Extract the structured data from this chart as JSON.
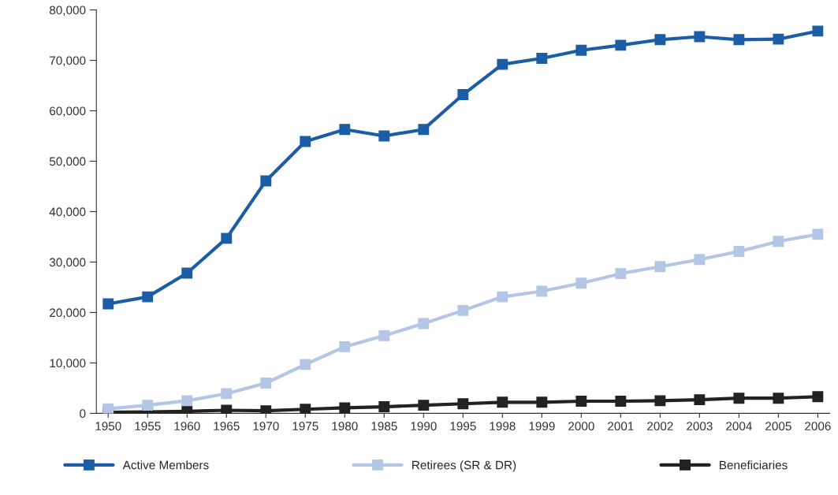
{
  "chart_data": {
    "type": "line",
    "categories": [
      "1950",
      "1955",
      "1960",
      "1965",
      "1970",
      "1975",
      "1980",
      "1985",
      "1990",
      "1995",
      "1998",
      "1999",
      "2000",
      "2001",
      "2002",
      "2003",
      "2004",
      "2005",
      "2006"
    ],
    "series": [
      {
        "name": "Active Members",
        "color": "#1b5ea6",
        "values": [
          21700,
          23100,
          27800,
          34700,
          46100,
          53900,
          56300,
          55000,
          56300,
          63200,
          69200,
          70400,
          72000,
          73000,
          74100,
          74700,
          74100,
          74200,
          75800
        ]
      },
      {
        "name": "Retirees (SR & DR)",
        "color": "#b3c6e6",
        "values": [
          900,
          1600,
          2500,
          3900,
          6000,
          9700,
          13200,
          15400,
          17800,
          20400,
          23100,
          24200,
          25800,
          27700,
          29100,
          30500,
          32100,
          34100,
          35500
        ]
      },
      {
        "name": "Beneficiaries",
        "color": "#222222",
        "values": [
          200,
          300,
          400,
          600,
          500,
          800,
          1100,
          1300,
          1600,
          1900,
          2200,
          2200,
          2400,
          2400,
          2500,
          2700,
          3000,
          3000,
          3300
        ]
      }
    ],
    "ylim": [
      0,
      80000
    ],
    "yticks": [
      0,
      {
        "value": 10000,
        "label": "10,000"
      },
      {
        "value": 20000,
        "label": "20,000"
      },
      {
        "value": 30000,
        "label": "30,000"
      },
      {
        "value": 40000,
        "label": "40,000"
      },
      {
        "value": 50000,
        "label": "50,000"
      },
      {
        "value": 60000,
        "label": "60,000"
      },
      {
        "value": 70000,
        "label": "70,000"
      },
      {
        "value": 80000,
        "label": "80,000"
      }
    ],
    "marker": "square",
    "line_style": "solid",
    "grid": false,
    "legend": "bottom"
  }
}
